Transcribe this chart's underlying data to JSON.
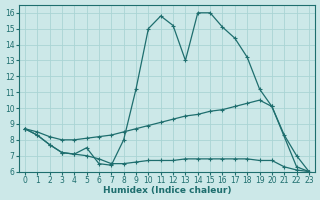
{
  "xlabel": "Humidex (Indice chaleur)",
  "ylabel": "",
  "bg_color": "#cce8e8",
  "line_color": "#1e6e6e",
  "grid_color": "#aad4d4",
  "xlim": [
    -0.5,
    23.5
  ],
  "ylim": [
    6,
    16.5
  ],
  "xticks": [
    0,
    1,
    2,
    3,
    4,
    5,
    6,
    7,
    8,
    9,
    10,
    11,
    12,
    13,
    14,
    15,
    16,
    17,
    18,
    19,
    20,
    21,
    22,
    23
  ],
  "yticks": [
    6,
    7,
    8,
    9,
    10,
    11,
    12,
    13,
    14,
    15,
    16
  ],
  "line1_x": [
    0,
    1,
    2,
    3,
    4,
    5,
    6,
    7,
    8,
    9,
    10,
    11,
    12,
    13,
    14,
    15,
    16,
    17,
    18,
    19,
    20,
    21,
    22,
    23
  ],
  "line1_y": [
    8.7,
    8.3,
    7.7,
    7.2,
    7.1,
    7.5,
    6.5,
    6.4,
    8.0,
    11.2,
    15.0,
    15.8,
    15.2,
    13.0,
    16.0,
    16.0,
    15.1,
    14.4,
    13.2,
    11.2,
    10.1,
    8.3,
    7.0,
    6.0
  ],
  "line2_x": [
    0,
    1,
    2,
    3,
    4,
    5,
    6,
    7,
    8,
    9,
    10,
    11,
    12,
    13,
    14,
    15,
    16,
    17,
    18,
    19,
    20,
    22,
    23
  ],
  "line2_y": [
    8.7,
    8.5,
    8.2,
    8.0,
    8.0,
    8.1,
    8.2,
    8.3,
    8.5,
    8.7,
    8.9,
    9.1,
    9.3,
    9.5,
    9.6,
    9.8,
    9.9,
    10.1,
    10.3,
    10.5,
    10.1,
    6.3,
    6.0
  ],
  "line3_x": [
    0,
    1,
    2,
    3,
    4,
    5,
    6,
    7,
    8,
    9,
    10,
    11,
    12,
    13,
    14,
    15,
    16,
    17,
    18,
    19,
    20,
    21,
    22,
    23
  ],
  "line3_y": [
    8.7,
    8.3,
    7.7,
    7.2,
    7.1,
    7.0,
    6.8,
    6.5,
    6.5,
    6.6,
    6.7,
    6.7,
    6.7,
    6.8,
    6.8,
    6.8,
    6.8,
    6.8,
    6.8,
    6.7,
    6.7,
    6.3,
    6.1,
    6.0
  ]
}
